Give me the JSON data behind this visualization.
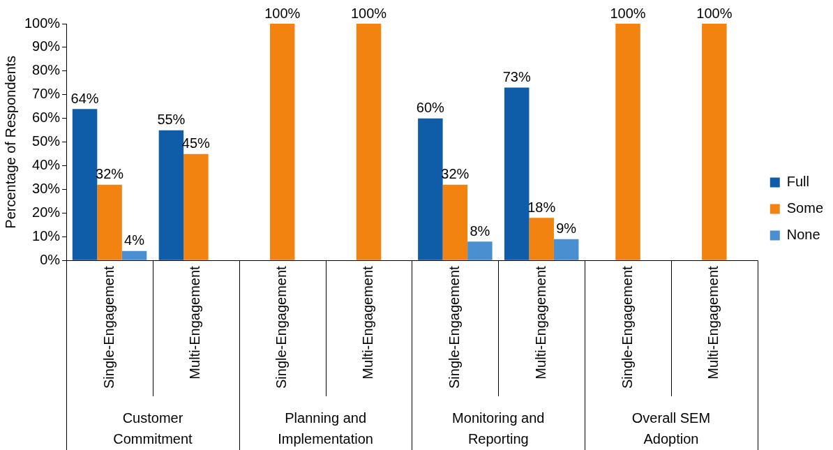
{
  "chart_data": {
    "type": "bar",
    "ylabel": "Percentage of Respondents",
    "categories": [
      "Single-Engagement",
      "Multi-Engagement",
      "Single-Engagement",
      "Multi-Engagement",
      "Single-Engagement",
      "Multi-Engagement",
      "Single-Engagement",
      "Multi-Engagement"
    ],
    "annotations": [
      "Customer Commitment",
      "Planning and Implementation",
      "Monitoring and Reporting",
      "Overall SEM Adoption"
    ],
    "series": [
      {
        "name": "Full",
        "color": "#0f5ca8",
        "values": [
          64,
          55,
          null,
          null,
          60,
          73,
          null,
          null
        ],
        "value_labels": [
          "64%",
          "55%",
          null,
          null,
          "60%",
          "73%",
          null,
          null
        ]
      },
      {
        "name": "Some",
        "color": "#f28311",
        "values": [
          32,
          45,
          100,
          100,
          32,
          18,
          100,
          100
        ],
        "value_labels": [
          "32%",
          "45%",
          "100%",
          "100%",
          "32%",
          "18%",
          "100%",
          "100%"
        ]
      },
      {
        "name": "None",
        "color": "#4a90d0",
        "values": [
          4,
          null,
          null,
          null,
          8,
          9,
          null,
          null
        ],
        "value_labels": [
          "4%",
          null,
          null,
          null,
          "8%",
          "9%",
          null,
          null
        ]
      }
    ],
    "ylim": [
      0,
      100
    ],
    "yticks": [
      {
        "value": 0,
        "label": "0%"
      },
      {
        "value": 10,
        "label": "10%"
      },
      {
        "value": 20,
        "label": "20%"
      },
      {
        "value": 30,
        "label": "30%"
      },
      {
        "value": 40,
        "label": "40%"
      },
      {
        "value": 50,
        "label": "50%"
      },
      {
        "value": 60,
        "label": "60%"
      },
      {
        "value": 70,
        "label": "70%"
      },
      {
        "value": 80,
        "label": "80%"
      },
      {
        "value": 90,
        "label": "90%"
      },
      {
        "value": 100,
        "label": "100%"
      }
    ],
    "grid": false,
    "legend": "right"
  }
}
